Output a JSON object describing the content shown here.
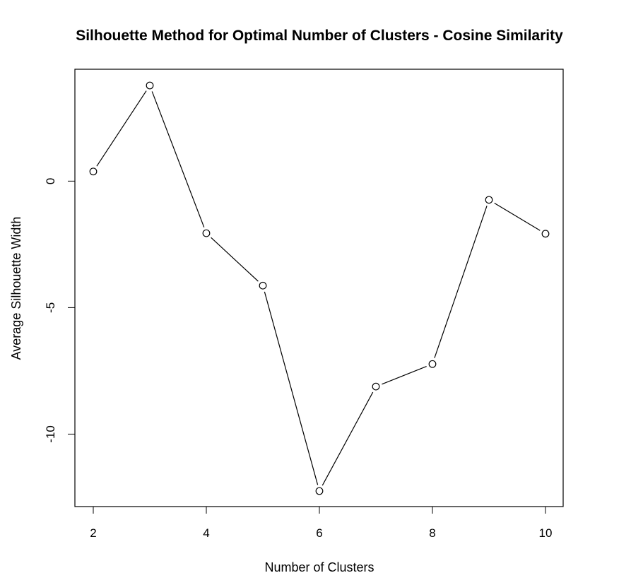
{
  "chart_data": {
    "type": "line",
    "title": "Silhouette Method for Optimal Number of Clusters - Cosine Similarity",
    "xlabel": "Number of Clusters",
    "ylabel": "Average Silhouette Width",
    "x": [
      2,
      3,
      4,
      5,
      6,
      7,
      8,
      9,
      10
    ],
    "series": [
      {
        "values": [
          0.38,
          3.78,
          -2.06,
          -4.13,
          -12.25,
          -8.12,
          -7.23,
          -0.74,
          -2.08
        ]
      }
    ],
    "xlim": [
      1.7,
      10.3
    ],
    "ylim": [
      -12.9,
      4.4
    ],
    "xticks": [
      2,
      4,
      6,
      8,
      10
    ],
    "xtick_labels": [
      "2",
      "4",
      "6",
      "8",
      "10"
    ],
    "yticks": [
      -10,
      -5,
      0
    ],
    "ytick_labels": [
      "-10",
      "-5",
      "0"
    ],
    "marker": "open-circle",
    "grid": false,
    "legend": false,
    "colors": {
      "line": "#000000",
      "marker_fill": "#ffffff",
      "background": "#ffffff"
    }
  }
}
